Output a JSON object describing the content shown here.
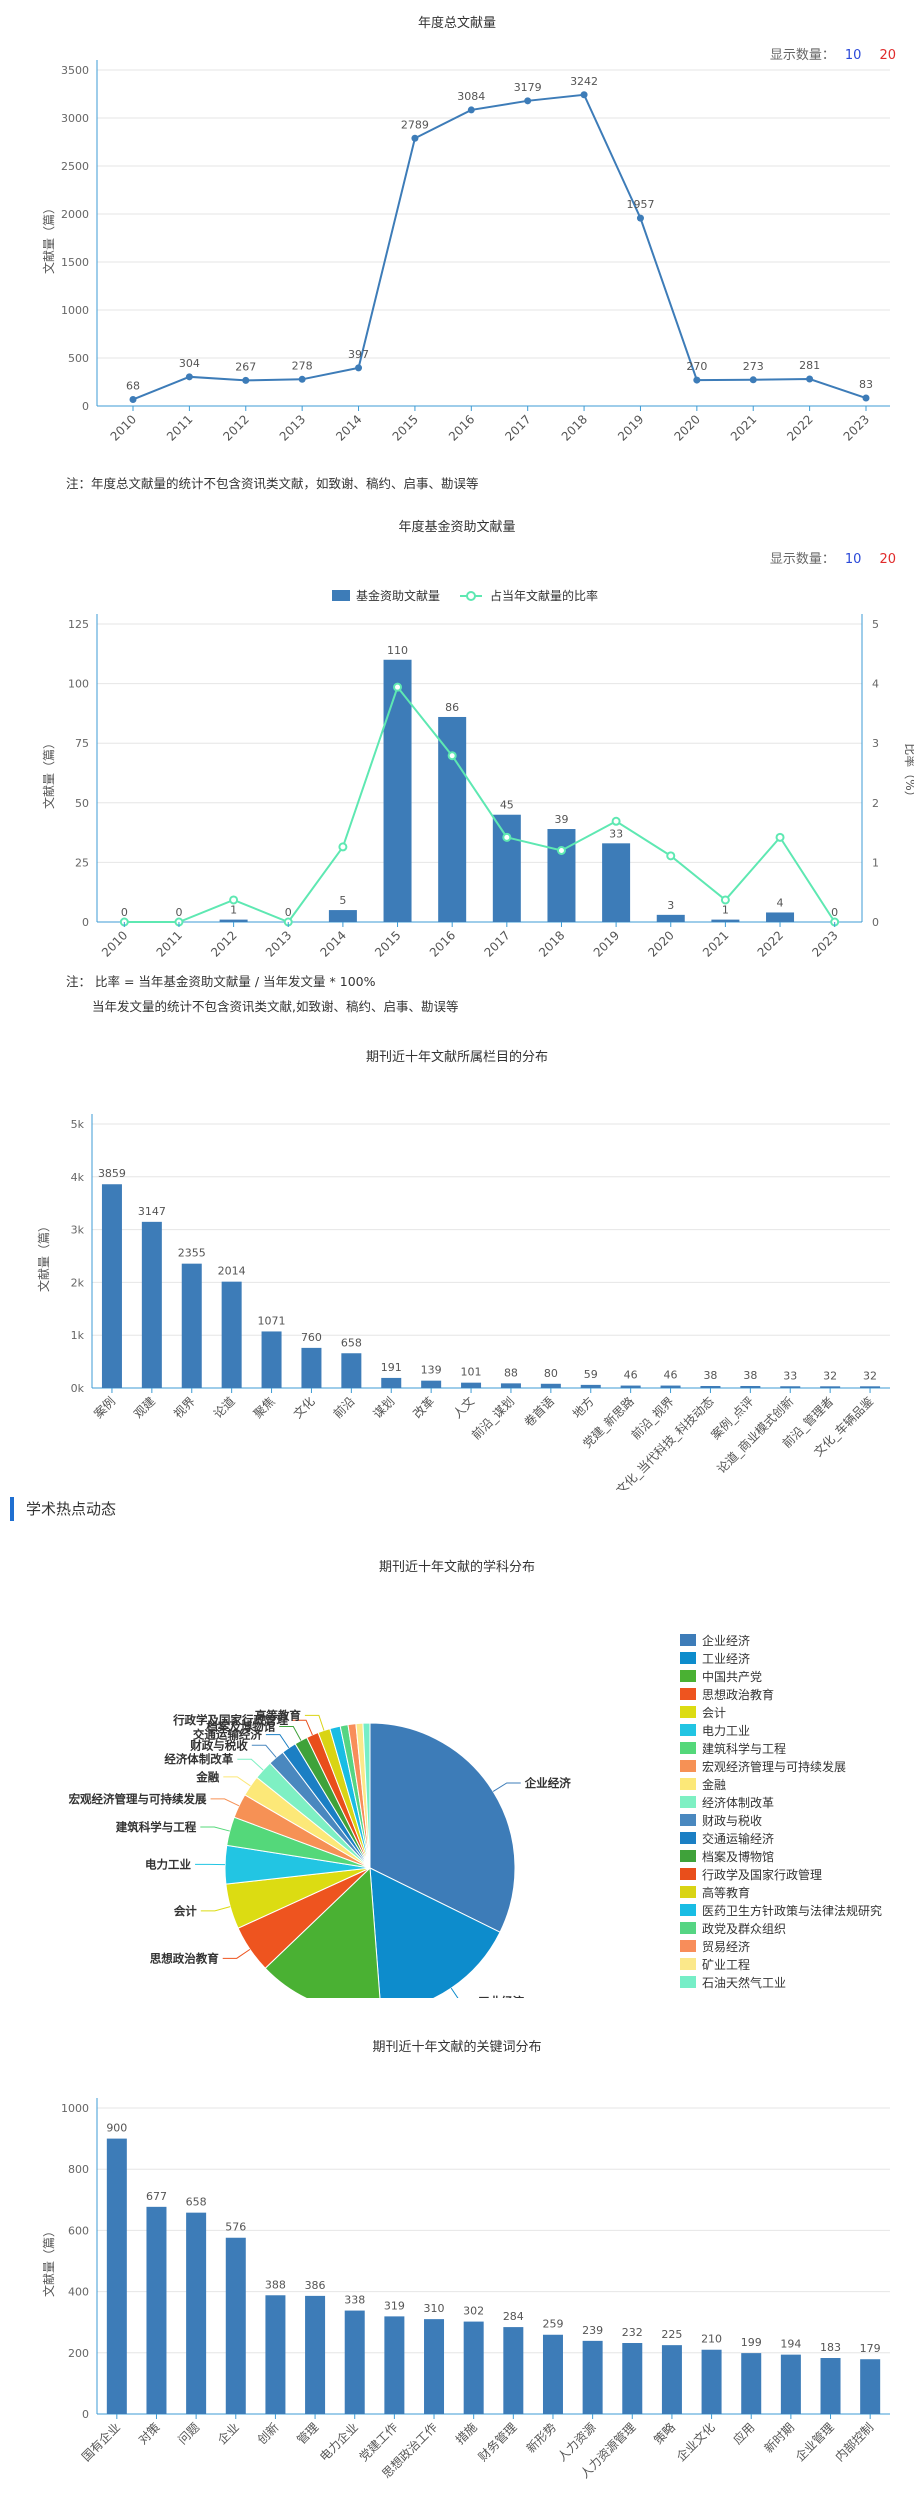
{
  "section_heading": "学术热点动态",
  "display_count": {
    "label": "显示数量：",
    "opt1": "10",
    "opt2": "20"
  },
  "notes": {
    "chart1": "注：年度总文献量的统计不包含资讯类文献，如致谢、稿约、启事、勘误等",
    "chart2_line1": "注： 比率 = 当年基金资助文献量 / 当年发文量 * 100%",
    "chart2_line2": "当年发文量的统计不包含资讯类文献,如致谢、稿约、启事、勘误等"
  },
  "chart_data": [
    {
      "type": "line",
      "title": "年度总文献量",
      "ylabel": "文献量（篇）",
      "ylim": [
        0,
        3500
      ],
      "yticks": [
        0,
        500,
        1000,
        1500,
        2000,
        2500,
        3000,
        3500
      ],
      "categories": [
        "2010",
        "2011",
        "2012",
        "2013",
        "2014",
        "2015",
        "2016",
        "2017",
        "2018",
        "2019",
        "2020",
        "2021",
        "2022",
        "2023"
      ],
      "values": [
        68,
        304,
        267,
        278,
        397,
        2789,
        3084,
        3179,
        3242,
        1957,
        270,
        273,
        281,
        83
      ],
      "color": "#3d7cb8",
      "grid": "horizontal"
    },
    {
      "type": "bar",
      "title": "年度基金资助文献量",
      "ylabel": "文献量（篇）",
      "y2label": "比率（%）",
      "ylim": [
        0,
        125
      ],
      "yticks": [
        0,
        25,
        50,
        75,
        100,
        125
      ],
      "y2lim": [
        0,
        5
      ],
      "y2ticks": [
        0,
        1,
        2,
        3,
        4,
        5
      ],
      "categories": [
        "2010",
        "2011",
        "2012",
        "2013",
        "2014",
        "2015",
        "2016",
        "2017",
        "2018",
        "2019",
        "2020",
        "2021",
        "2022",
        "2023"
      ],
      "series": [
        {
          "name": "基金资助文献量",
          "values": [
            0,
            0,
            1,
            0,
            5,
            110,
            86,
            45,
            39,
            33,
            3,
            1,
            4,
            0
          ],
          "color": "#3d7cb8"
        },
        {
          "name": "占当年文献量的比率",
          "values": [
            0,
            0,
            0.37,
            0,
            1.26,
            3.94,
            2.79,
            1.42,
            1.2,
            1.69,
            1.11,
            0.37,
            1.42,
            0
          ],
          "color": "#5ee8b2"
        }
      ],
      "grid": "horizontal"
    },
    {
      "type": "bar",
      "title": "期刊近十年文献所属栏目的分布",
      "ylabel": "文献量（篇）",
      "ylim": [
        0,
        5000
      ],
      "yticks": [
        "0k",
        "1k",
        "2k",
        "3k",
        "4k",
        "5k"
      ],
      "categories": [
        "案例",
        "观建",
        "视界",
        "论道",
        "聚焦",
        "文化",
        "前沿",
        "谋划",
        "改革",
        "人文",
        "前沿_谋划",
        "卷首语",
        "地方",
        "党建_新思路",
        "前沿_视界",
        "文化_当代科技_科技动态",
        "案例_点评",
        "论道_商业模式创新",
        "前沿_管理者",
        "文化_车辆品鉴"
      ],
      "values": [
        3859,
        3147,
        2355,
        2014,
        1071,
        760,
        658,
        191,
        139,
        101,
        88,
        80,
        59,
        46,
        46,
        38,
        38,
        33,
        32,
        32
      ],
      "color": "#3d7cb8",
      "grid": "horizontal"
    },
    {
      "type": "pie",
      "title": "期刊近十年文献的学科分布",
      "slices": [
        {
          "label": "企业经济",
          "value": 33.3,
          "color": "#3d7cb8"
        },
        {
          "label": "工业经济",
          "value": 17.0,
          "color": "#0d8ccc"
        },
        {
          "label": "中国共产党",
          "value": 14.5,
          "color": "#4ab133"
        },
        {
          "label": "思想政治教育",
          "value": 5.5,
          "color": "#ee541f"
        },
        {
          "label": "会计",
          "value": 5.2,
          "color": "#dcdc12"
        },
        {
          "label": "电力工业",
          "value": 4.4,
          "color": "#22c5e3"
        },
        {
          "label": "建筑科学与工程",
          "value": 3.3,
          "color": "#54d87a"
        },
        {
          "label": "宏观经济管理与可持续发展",
          "value": 2.8,
          "color": "#f69155"
        },
        {
          "label": "金融",
          "value": 2.4,
          "color": "#fce878"
        },
        {
          "label": "经济体制改革",
          "value": 2.2,
          "color": "#7ef0c3"
        },
        {
          "label": "财政与税收",
          "value": 1.9,
          "color": "#4a88bf"
        },
        {
          "label": "交通运输经济",
          "value": 1.7,
          "color": "#1b7fc4"
        },
        {
          "label": "档案及博物馆",
          "value": 1.5,
          "color": "#3fa23a"
        },
        {
          "label": "行政学及国家行政管理",
          "value": 1.4,
          "color": "#e94e1b"
        },
        {
          "label": "高等教育",
          "value": 1.4,
          "color": "#d9d414"
        },
        {
          "label": "医药卫生方针政策与法律法规研究",
          "value": 1.2,
          "color": "#19bde4"
        },
        {
          "label": "政党及群众组织",
          "value": 0.9,
          "color": "#55d583"
        },
        {
          "label": "贸易经济",
          "value": 0.9,
          "color": "#f88d5a"
        },
        {
          "label": "矿业工程",
          "value": 0.8,
          "color": "#fbe88a"
        },
        {
          "label": "石油天然气工业",
          "value": 0.8,
          "color": "#76eec7"
        }
      ],
      "outer_labels": [
        "企业经济",
        "工业经济",
        "中国共产党",
        "思想政治教育",
        "会计",
        "电力工业",
        "建筑科学与工程",
        "宏观经济管理与可持续发展",
        "金融",
        "经济体制改革",
        "财政与税收",
        "交通运输经济",
        "档案及博物馆",
        "行政学及国家行政管理",
        "高等教育"
      ],
      "legend": "right"
    },
    {
      "type": "bar",
      "title": "期刊近十年文献的关键词分布",
      "ylabel": "文献量（篇）",
      "ylim": [
        0,
        1000
      ],
      "yticks": [
        0,
        200,
        400,
        600,
        800,
        1000
      ],
      "categories": [
        "国有企业",
        "对策",
        "问题",
        "企业",
        "创新",
        "管理",
        "电力企业",
        "党建工作",
        "思想政治工作",
        "措施",
        "财务管理",
        "新形势",
        "人力资源",
        "人力资源管理",
        "策略",
        "企业文化",
        "应用",
        "新时期",
        "企业管理",
        "内部控制"
      ],
      "values": [
        900,
        677,
        658,
        576,
        388,
        386,
        338,
        319,
        310,
        302,
        284,
        259,
        239,
        232,
        225,
        210,
        199,
        194,
        183,
        179
      ],
      "color": "#3d7cb8",
      "grid": "horizontal"
    }
  ]
}
